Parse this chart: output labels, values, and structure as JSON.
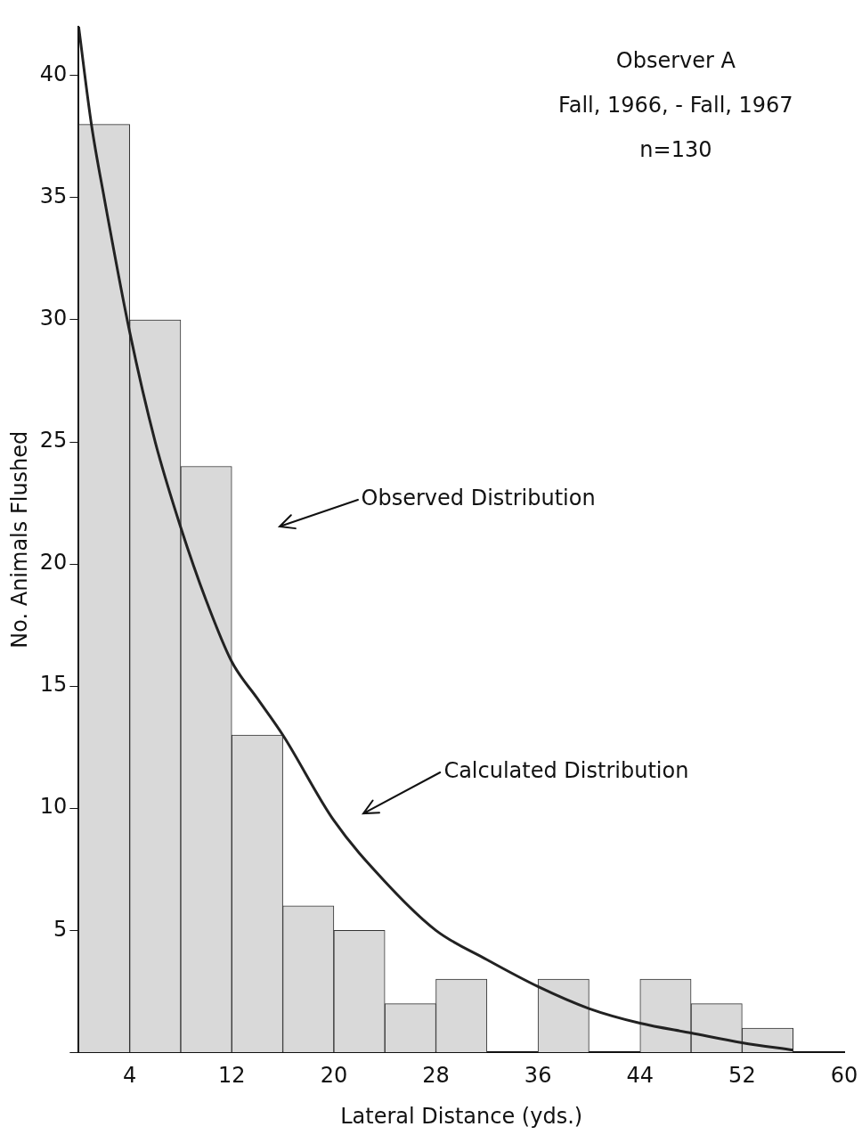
{
  "chart_data": {
    "type": "histogram",
    "xlabel": "Lateral Distance (yds.)",
    "ylabel": "No. Animals Flushed",
    "bins": [
      0,
      4,
      8,
      12,
      16,
      20,
      24,
      28,
      32,
      36,
      40,
      44,
      48,
      52,
      56
    ],
    "values": [
      38,
      30,
      24,
      13,
      6,
      5,
      2,
      3,
      0,
      3,
      0,
      3,
      2,
      1
    ],
    "color": "#d9d9d9",
    "series": [
      {
        "type": "line",
        "color": "#222222",
        "x": [
          0,
          1,
          2,
          4,
          6,
          8,
          10,
          12,
          14,
          16,
          20,
          24,
          28,
          32,
          36,
          40,
          44,
          48,
          52,
          56
        ],
        "values": [
          42,
          38,
          35,
          29.5,
          25,
          21.5,
          18.5,
          16,
          14.5,
          13,
          9.5,
          7,
          5,
          3.8,
          2.7,
          1.8,
          1.2,
          0.8,
          0.4,
          0.1
        ]
      }
    ],
    "xlim": [
      0,
      60
    ],
    "xticks": [
      4,
      12,
      20,
      28,
      36,
      44,
      52,
      60
    ],
    "ylim": [
      0,
      42
    ],
    "yticks": [
      {
        "value": 0,
        "label": null
      },
      5,
      10,
      15,
      20,
      25,
      30,
      35,
      40
    ],
    "grid": false,
    "legend": false,
    "annotations": [
      "Observer A",
      "Fall, 1966, - Fall, 1967",
      "n=130",
      "Observed Distribution",
      "Calculated Distribution"
    ]
  }
}
